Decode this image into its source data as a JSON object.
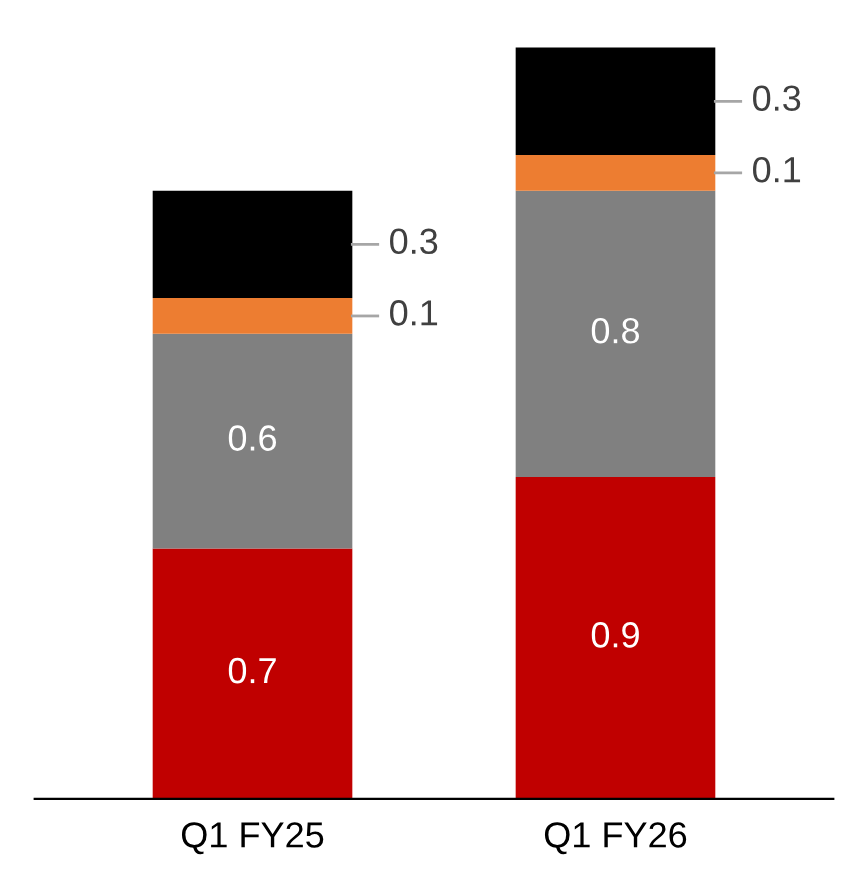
{
  "chart_data": {
    "type": "bar",
    "stacked": true,
    "data_labels": true,
    "categories": [
      "Q1 FY25",
      "Q1 FY26"
    ],
    "series": [
      {
        "color": "#c00000",
        "values": [
          0.7,
          0.9
        ]
      },
      {
        "color": "#808080",
        "values": [
          0.6,
          0.8
        ]
      },
      {
        "color": "#ed7d31",
        "values": [
          0.1,
          0.1
        ]
      },
      {
        "color": "#000000",
        "values": [
          0.3,
          0.3
        ]
      }
    ]
  }
}
